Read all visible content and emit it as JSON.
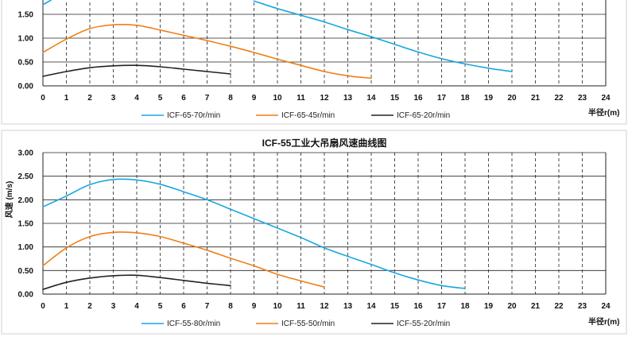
{
  "chart_data": [
    {
      "type": "line",
      "title": "",
      "xlabel": "半径r(m)",
      "ylabel": "",
      "xlim": [
        0,
        24
      ],
      "ylim": [
        0,
        2.0
      ],
      "x_ticks": [
        "0",
        "1",
        "2",
        "3",
        "4",
        "5",
        "6",
        "7",
        "8",
        "9",
        "10",
        "11",
        "12",
        "13",
        "14",
        "15",
        "16",
        "17",
        "18",
        "19",
        "20",
        "21",
        "22",
        "23",
        "24"
      ],
      "y_ticks": [
        "0.00",
        "0.50",
        "1.00",
        "1.50"
      ],
      "grid": "dashed-vertical, solid-horizontal",
      "legend": "bottom",
      "series": [
        {
          "name": "ICF-65-70r/min",
          "color": "#1aa7e0",
          "x": [
            9,
            10,
            11,
            12,
            13,
            14,
            15,
            16,
            17,
            18,
            19,
            20
          ],
          "y": [
            1.78,
            1.62,
            1.48,
            1.34,
            1.18,
            1.03,
            0.87,
            0.71,
            0.57,
            0.46,
            0.37,
            0.3
          ]
        },
        {
          "name": "ICF-65-45r/min",
          "color": "#f07f15",
          "x": [
            0,
            1,
            2,
            3,
            4,
            5,
            6,
            7,
            8,
            9,
            10,
            11,
            12,
            13,
            14
          ],
          "y": [
            0.7,
            0.98,
            1.2,
            1.28,
            1.27,
            1.17,
            1.06,
            0.95,
            0.83,
            0.7,
            0.56,
            0.43,
            0.3,
            0.21,
            0.16
          ]
        },
        {
          "name": "ICF-65-20r/min",
          "color": "#222222",
          "x": [
            0,
            1,
            2,
            3,
            4,
            5,
            6,
            7,
            8
          ],
          "y": [
            0.2,
            0.3,
            0.38,
            0.42,
            0.43,
            0.4,
            0.35,
            0.3,
            0.25
          ]
        },
        {
          "name": "",
          "color": "#1aa7e0",
          "x": [
            0,
            0.35
          ],
          "y": [
            1.7,
            1.8
          ]
        }
      ]
    },
    {
      "type": "line",
      "title": "ICF-55工业大吊扇风速曲线图",
      "xlabel": "半径r(m)",
      "ylabel": "风速 (m/s)",
      "xlim": [
        0,
        24
      ],
      "ylim": [
        0,
        3.0
      ],
      "x_ticks": [
        "0",
        "1",
        "2",
        "3",
        "4",
        "5",
        "6",
        "7",
        "8",
        "9",
        "10",
        "11",
        "12",
        "13",
        "14",
        "15",
        "16",
        "17",
        "18",
        "19",
        "20",
        "21",
        "22",
        "23",
        "24"
      ],
      "y_ticks": [
        "0.00",
        "0.50",
        "1.00",
        "1.50",
        "2.00",
        "2.50",
        "3.00"
      ],
      "grid": "dashed-vertical, solid-horizontal",
      "legend": "bottom",
      "series": [
        {
          "name": "ICF-55-80r/min",
          "color": "#1aa7e0",
          "x": [
            0,
            1,
            2,
            3,
            4,
            5,
            6,
            7,
            8,
            9,
            10,
            11,
            12,
            13,
            14,
            15,
            16,
            17,
            18
          ],
          "y": [
            1.85,
            2.08,
            2.32,
            2.43,
            2.42,
            2.33,
            2.17,
            2.0,
            1.8,
            1.6,
            1.4,
            1.2,
            0.98,
            0.8,
            0.63,
            0.45,
            0.3,
            0.18,
            0.12
          ]
        },
        {
          "name": "ICF-55-50r/min",
          "color": "#f07f15",
          "x": [
            0,
            1,
            2,
            3,
            4,
            5,
            6,
            7,
            8,
            9,
            10,
            11,
            12
          ],
          "y": [
            0.6,
            0.98,
            1.22,
            1.31,
            1.3,
            1.22,
            1.08,
            0.93,
            0.76,
            0.6,
            0.42,
            0.28,
            0.15
          ]
        },
        {
          "name": "ICF-55-20r/min",
          "color": "#222222",
          "x": [
            0,
            1,
            2,
            3,
            4,
            5,
            6,
            7,
            8
          ],
          "y": [
            0.1,
            0.25,
            0.34,
            0.39,
            0.4,
            0.35,
            0.29,
            0.23,
            0.18
          ]
        }
      ]
    }
  ]
}
